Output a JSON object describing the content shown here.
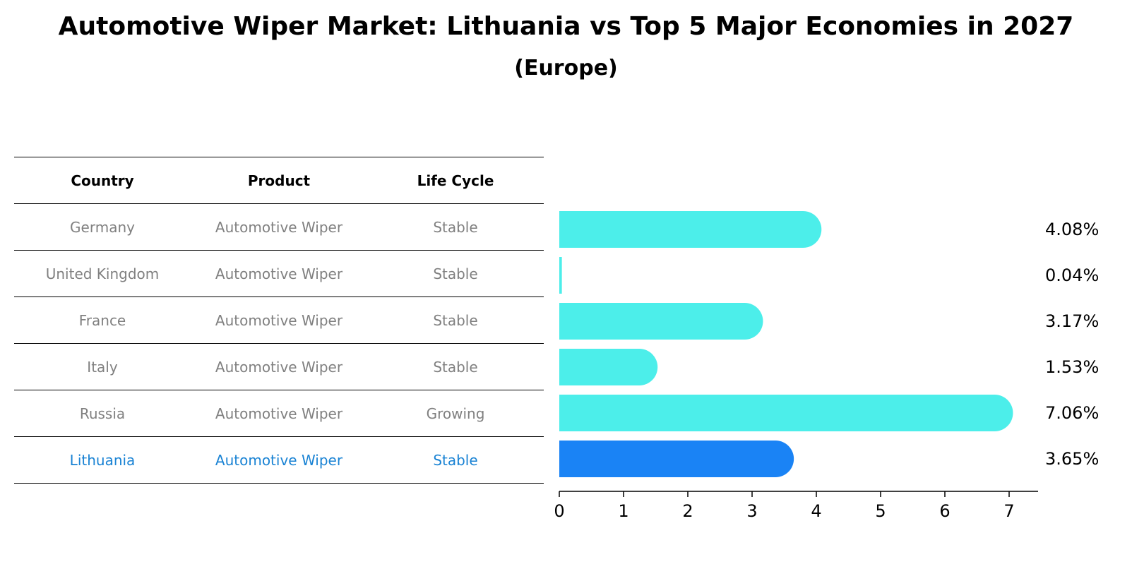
{
  "title": "Automotive Wiper Market: Lithuania vs Top 5 Major Economies in 2027",
  "subtitle": "(Europe)",
  "table": {
    "headers": [
      "Country",
      "Product",
      "Life Cycle"
    ],
    "rows": [
      {
        "country": "Germany",
        "product": "Automotive Wiper",
        "life_cycle": "Stable"
      },
      {
        "country": "United Kingdom",
        "product": "Automotive Wiper",
        "life_cycle": "Stable"
      },
      {
        "country": "France",
        "product": "Automotive Wiper",
        "life_cycle": "Stable"
      },
      {
        "country": "Italy",
        "product": "Automotive Wiper",
        "life_cycle": "Stable"
      },
      {
        "country": "Russia",
        "product": "Automotive Wiper",
        "life_cycle": "Growing"
      },
      {
        "country": "Lithuania",
        "product": "Automotive Wiper",
        "life_cycle": "Stable"
      }
    ],
    "highlight_color": "#1a83d4",
    "text_color": "#808080"
  },
  "chart_data": {
    "type": "bar",
    "orientation": "horizontal",
    "categories": [
      "Germany",
      "United Kingdom",
      "France",
      "Italy",
      "Russia",
      "Lithuania"
    ],
    "values": [
      4.08,
      0.04,
      3.17,
      1.53,
      7.06,
      3.65
    ],
    "value_labels": [
      "4.08%",
      "0.04%",
      "3.17%",
      "1.53%",
      "7.06%",
      "3.65%"
    ],
    "colors": [
      "#4ceeea",
      "#4ceeea",
      "#4ceeea",
      "#4ceeea",
      "#4ceeea",
      "#1a83f5"
    ],
    "highlight_category": "Lithuania",
    "xlim": [
      0,
      7.5
    ],
    "xticks": [
      0,
      1,
      2,
      3,
      4,
      5,
      6,
      7
    ],
    "grid": false,
    "legend": "none"
  }
}
